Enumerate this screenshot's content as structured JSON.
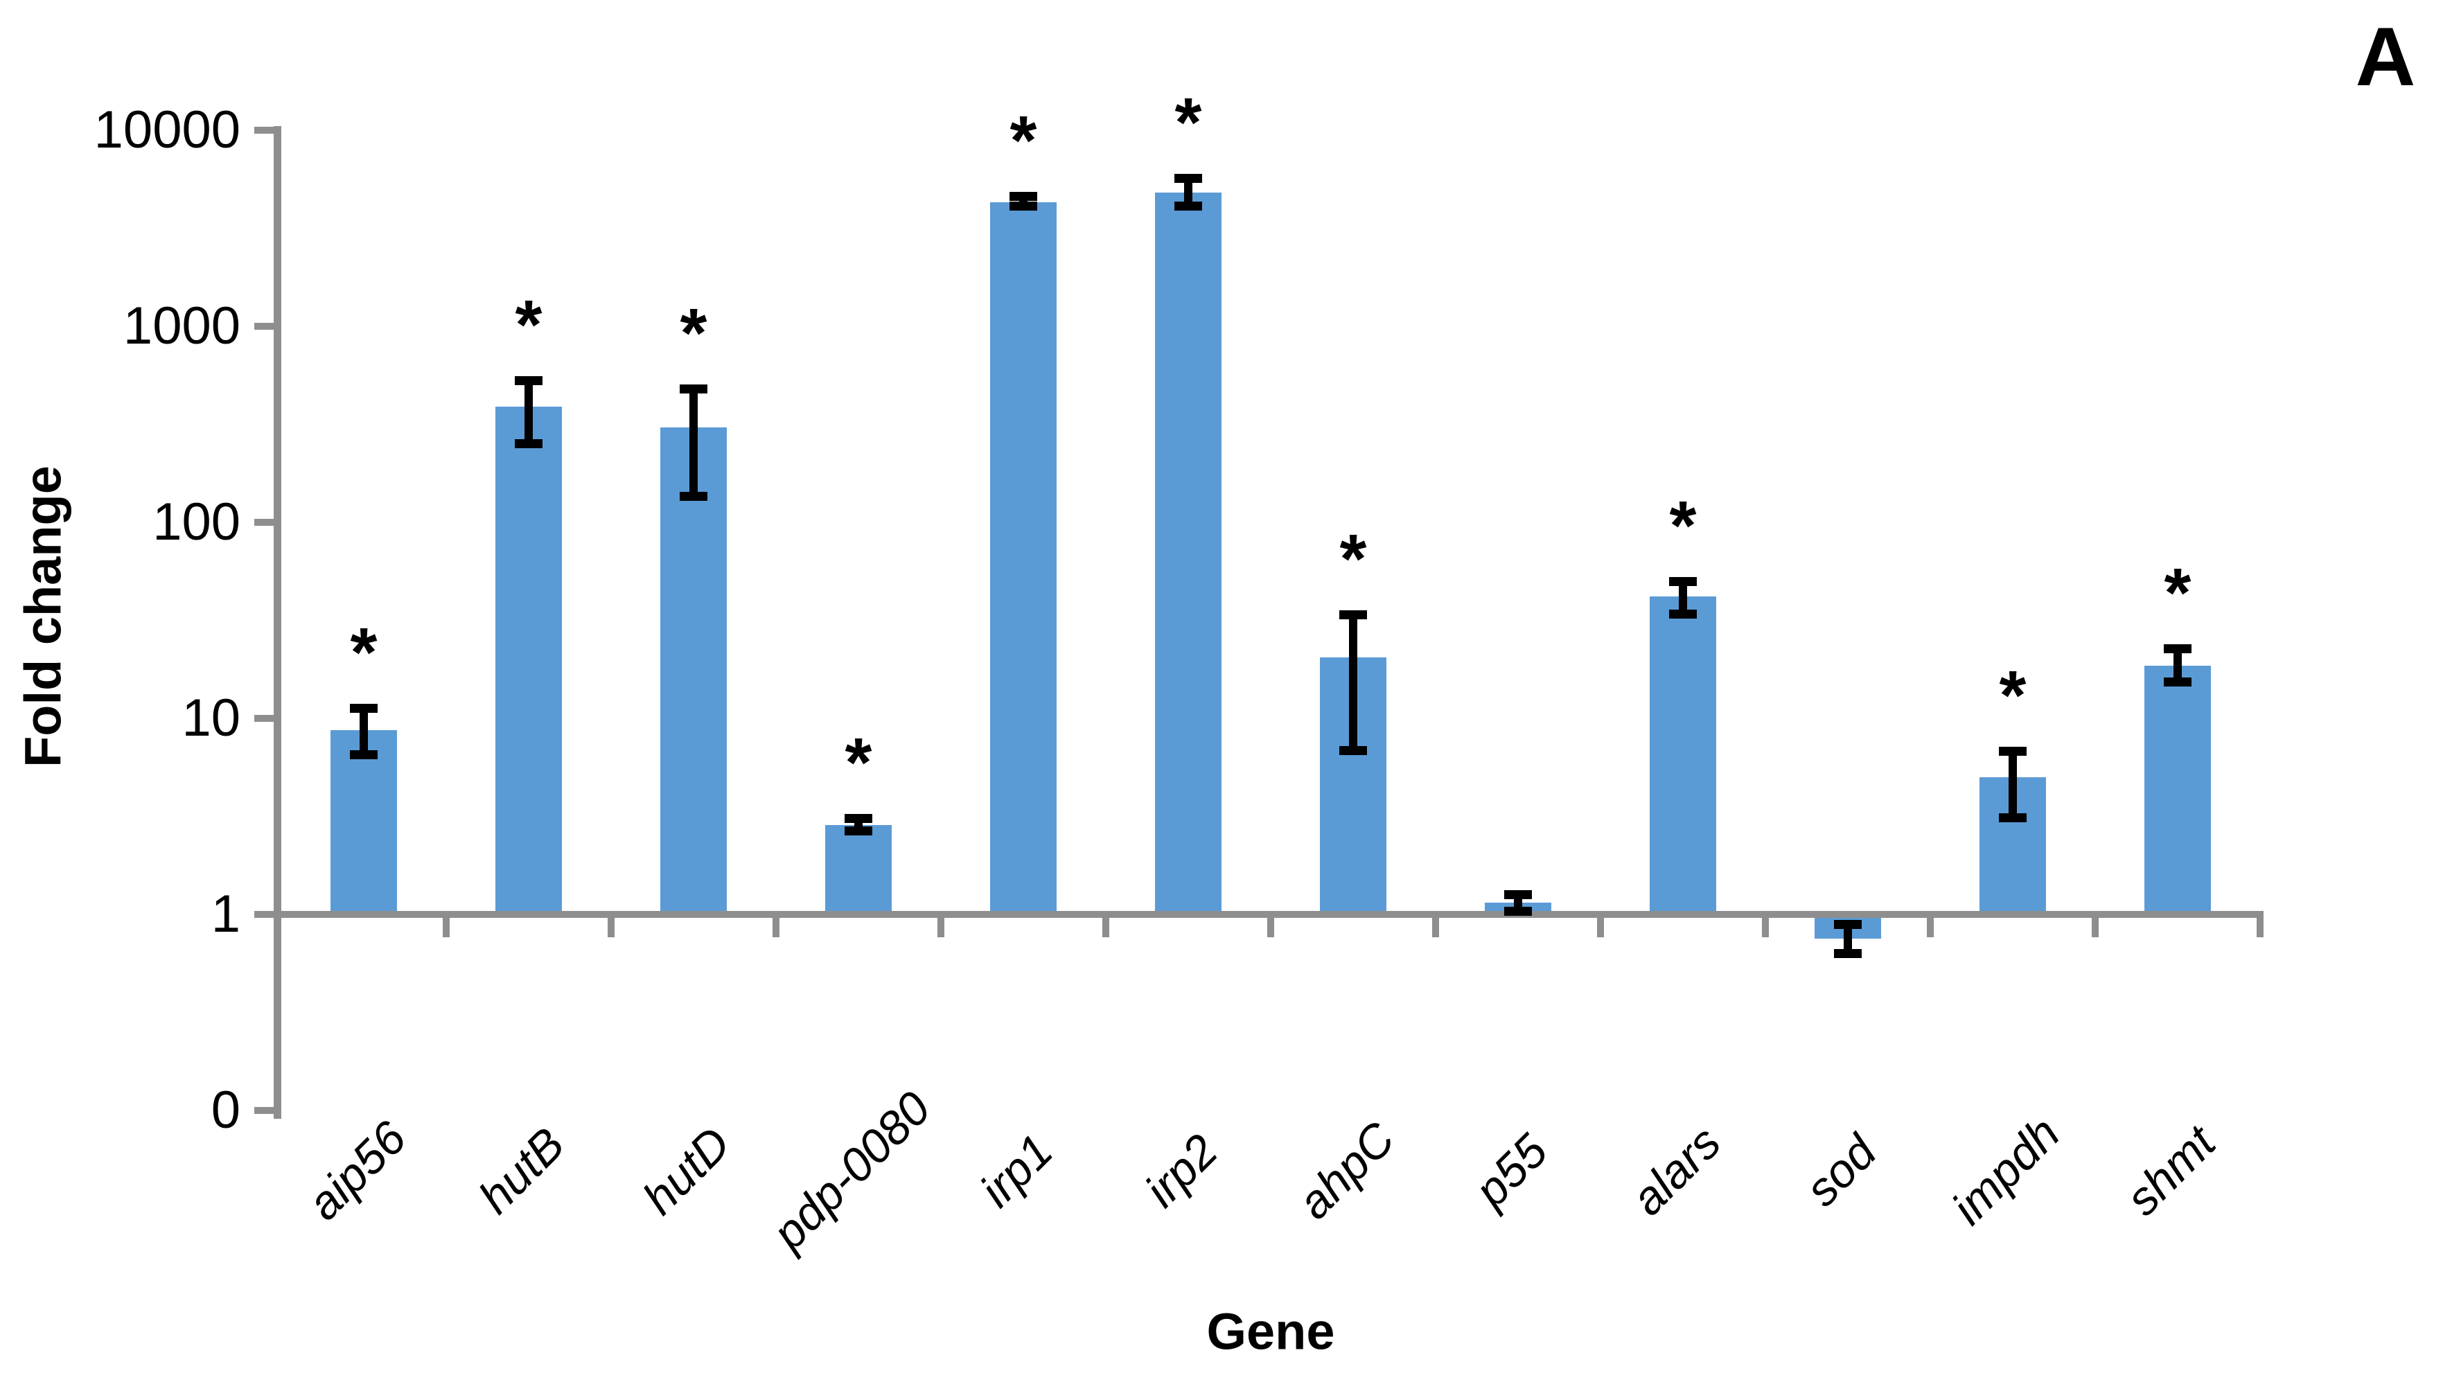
{
  "figure": {
    "panel_label": "A",
    "background_color": "#FFFFFF"
  },
  "chart_data": {
    "type": "bar",
    "title": "",
    "xlabel": "Gene",
    "ylabel": "Fold change",
    "y_scale": "log10",
    "y_axis_tick_labels": [
      "10000",
      "1000",
      "100",
      "10",
      "1",
      "0"
    ],
    "y_axis_top_value": 10000,
    "baseline_value": 1,
    "grid": false,
    "legend": "none",
    "bar_color": "#5B9BD5",
    "axis_color": "#8E8E8E",
    "error_bar_color": "#000000",
    "sig_marker": "*",
    "categories": [
      "aip56",
      "hutB",
      "hutD",
      "pdp-0080",
      "irp1",
      "irp2",
      "ahpC",
      "p55",
      "alars",
      "sod",
      "impdh",
      "shmt"
    ],
    "values": [
      8.7,
      390,
      305,
      2.85,
      4300,
      4800,
      20.5,
      1.15,
      42,
      0.75,
      5.0,
      18.6
    ],
    "error_low": [
      6.5,
      250,
      135,
      2.65,
      4090,
      4090,
      6.8,
      1.03,
      34,
      0.63,
      3.1,
      15.3
    ],
    "error_high": [
      11.3,
      530,
      480,
      3.1,
      4620,
      5700,
      34,
      1.27,
      50,
      0.89,
      6.8,
      22.8
    ],
    "significant": [
      true,
      true,
      true,
      true,
      true,
      true,
      true,
      false,
      true,
      false,
      true,
      true
    ]
  }
}
